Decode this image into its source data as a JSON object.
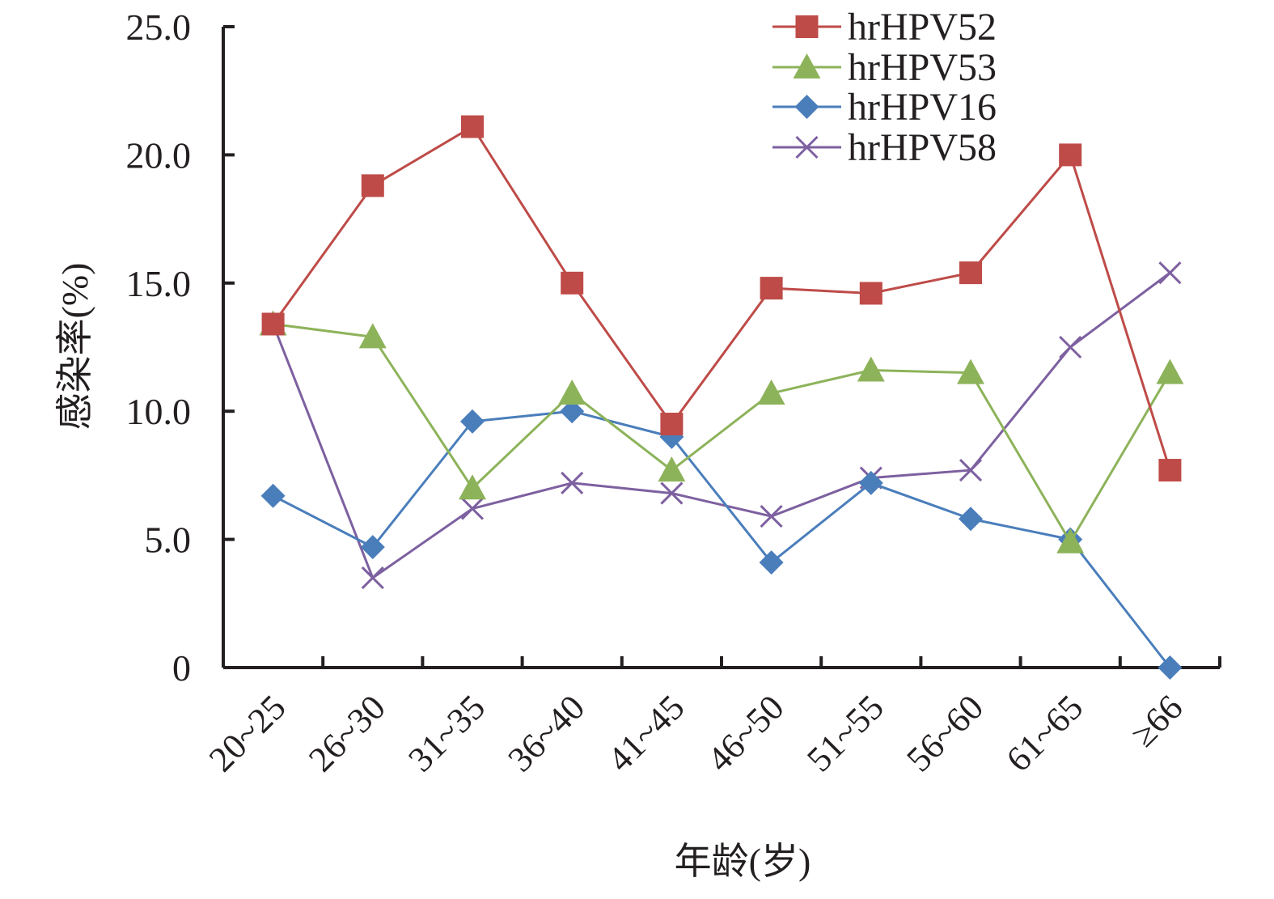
{
  "chart_data": {
    "type": "line",
    "title": "",
    "xlabel": "年龄(岁)",
    "ylabel": "感染率(%)",
    "ylim": [
      0,
      25
    ],
    "y_ticks": [
      0,
      5,
      10,
      15,
      20,
      25
    ],
    "y_tick_labels": [
      "0",
      "5.0",
      "10.0",
      "15.0",
      "20.0",
      "25.0"
    ],
    "grid": false,
    "legend_position": "top-right",
    "categories": [
      "20~25",
      "26~30",
      "31~35",
      "36~40",
      "41~45",
      "46~50",
      "51~55",
      "56~60",
      "61~65",
      "≥66"
    ],
    "series": [
      {
        "name": "hrHPV52",
        "color": "#be4b48",
        "marker": "square",
        "values": [
          13.4,
          18.8,
          21.1,
          15.0,
          9.5,
          14.8,
          14.6,
          15.4,
          20.0,
          7.7
        ]
      },
      {
        "name": "hrHPV53",
        "color": "#8db35a",
        "marker": "triangle",
        "values": [
          13.4,
          12.9,
          7.0,
          10.7,
          7.7,
          10.7,
          11.6,
          11.5,
          4.9,
          11.5
        ]
      },
      {
        "name": "hrHPV16",
        "color": "#4a7ebb",
        "marker": "diamond",
        "values": [
          6.7,
          4.7,
          9.6,
          10.0,
          9.0,
          4.1,
          7.2,
          5.8,
          5.0,
          0.0
        ]
      },
      {
        "name": "hrHPV58",
        "color": "#7d60a0",
        "marker": "x",
        "values": [
          13.4,
          3.5,
          6.2,
          7.2,
          6.8,
          5.9,
          7.4,
          7.7,
          12.5,
          15.4
        ]
      }
    ]
  }
}
